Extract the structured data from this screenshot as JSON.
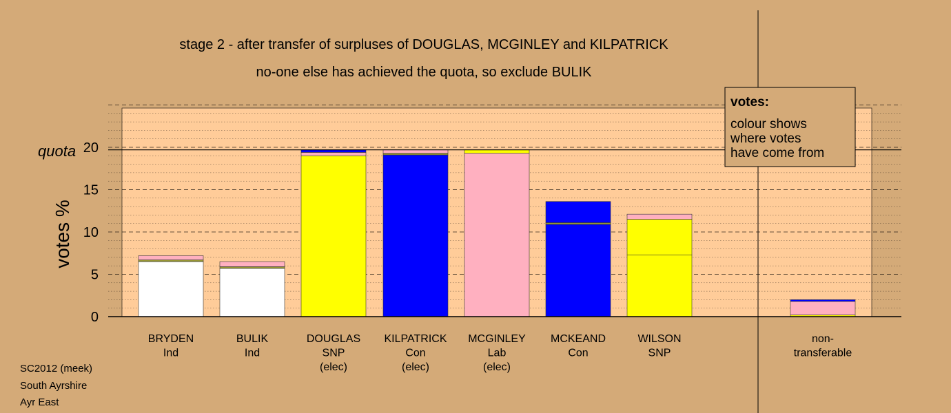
{
  "chart_data": {
    "type": "bar",
    "title": "stage 2 - after transfer of surpluses of DOUGLAS, MCGINLEY and KILPATRICK",
    "subtitle": "no-one else has achieved the quota, so exclude BULIK",
    "ylabel": "votes %",
    "ylim": [
      0,
      25
    ],
    "yticks": [
      0,
      5,
      10,
      15,
      20
    ],
    "quota": 19.7,
    "quota_label": "quota",
    "grid": "dashed major every 5, dotted minor every 1",
    "legend_box": {
      "title": "votes:",
      "lines": [
        "colour shows",
        "where votes",
        "have come from"
      ]
    },
    "candidates": [
      {
        "name": "BRYDEN",
        "party": "Ind",
        "status": "",
        "segments": [
          {
            "color": "#ffffff",
            "value": 6.5
          },
          {
            "color": "#999933",
            "value": 0.2
          },
          {
            "color": "#ffb0c0",
            "value": 0.5
          }
        ]
      },
      {
        "name": "BULIK",
        "party": "Ind",
        "status": "",
        "segments": [
          {
            "color": "#ffffff",
            "value": 5.7
          },
          {
            "color": "#999933",
            "value": 0.2
          },
          {
            "color": "#ffb0c0",
            "value": 0.6
          }
        ]
      },
      {
        "name": "DOUGLAS",
        "party": "SNP",
        "status": "(elec)",
        "segments": [
          {
            "color": "#ffff00",
            "value": 19.0
          },
          {
            "color": "#ffb0c0",
            "value": 0.4
          },
          {
            "color": "#0000ff",
            "value": 0.3
          }
        ]
      },
      {
        "name": "KILPATRICK",
        "party": "Con",
        "status": "(elec)",
        "segments": [
          {
            "color": "#0000ff",
            "value": 19.1
          },
          {
            "color": "#999933",
            "value": 0.2
          },
          {
            "color": "#ffb0c0",
            "value": 0.4
          }
        ]
      },
      {
        "name": "MCGINLEY",
        "party": "Lab",
        "status": "(elec)",
        "segments": [
          {
            "color": "#ffb0c0",
            "value": 19.3
          },
          {
            "color": "#ffff00",
            "value": 0.4
          }
        ]
      },
      {
        "name": "MCKEAND",
        "party": "Con",
        "status": "",
        "segments": [
          {
            "color": "#0000ff",
            "value": 10.9
          },
          {
            "color": "#999933",
            "value": 0.2
          },
          {
            "color": "#0000ff",
            "value": 2.5
          }
        ]
      },
      {
        "name": "WILSON",
        "party": "SNP",
        "status": "",
        "segments": [
          {
            "color": "#ffff00",
            "value": 7.3
          },
          {
            "color": "#ffff00",
            "value": 4.2
          },
          {
            "color": "#ffb0c0",
            "value": 0.6
          }
        ]
      },
      {
        "name": "non-",
        "party": "transferable",
        "status": "",
        "segments": [
          {
            "color": "#ffff00",
            "value": 0.2
          },
          {
            "color": "#ffb0c0",
            "value": 1.6
          },
          {
            "color": "#0000ff",
            "value": 0.2
          }
        ]
      }
    ]
  },
  "footer": {
    "lines": [
      "SC2012 (meek)",
      "South Ayrshire",
      "Ayr East"
    ]
  },
  "colors": {
    "background": "#d4aa78",
    "plot_area": "#ffcc99"
  }
}
